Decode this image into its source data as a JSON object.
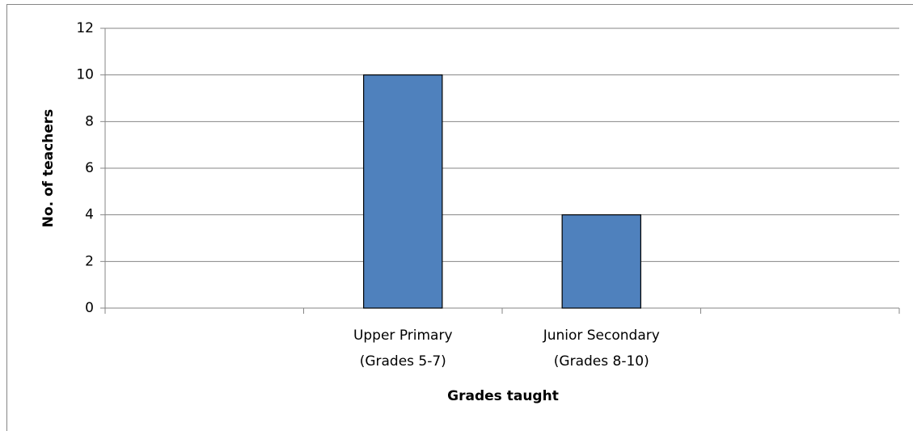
{
  "chart_data": {
    "type": "bar",
    "y_label": "No. of teachers",
    "x_label": "Grades taught",
    "categories": [
      null,
      [
        "Upper Primary",
        "(Grades 5-7)"
      ],
      [
        "Junior Secondary",
        "(Grades 8-10)"
      ],
      null
    ],
    "values": [
      null,
      10,
      4,
      null
    ],
    "color": "#4f81bd",
    "ylim": [
      0,
      12
    ],
    "yticks": [
      0,
      2,
      4,
      6,
      8,
      10,
      12
    ],
    "grid": true
  }
}
